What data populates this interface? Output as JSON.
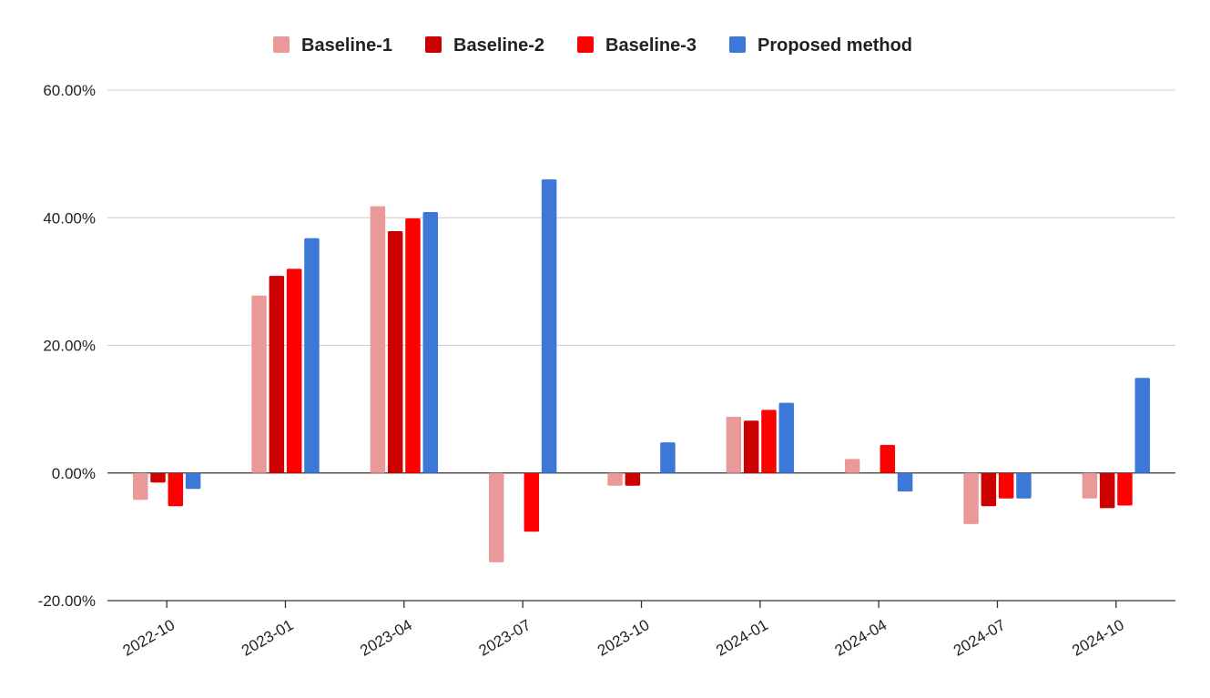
{
  "chart_data": {
    "type": "bar",
    "title": "",
    "xlabel": "",
    "ylabel": "",
    "categories": [
      "2022-10",
      "2023-01",
      "2023-04",
      "2023-07",
      "2023-10",
      "2024-01",
      "2024-04",
      "2024-07",
      "2024-10"
    ],
    "series": [
      {
        "name": "Baseline-1",
        "color": "#ea9999",
        "values": [
          -4.2,
          27.8,
          41.8,
          -14.0,
          -2.0,
          8.8,
          2.2,
          -8.0,
          -4.0
        ]
      },
      {
        "name": "Baseline-2",
        "color": "#cc0000",
        "values": [
          -1.5,
          30.9,
          37.9,
          0.0,
          -2.0,
          8.2,
          0.0,
          -5.2,
          -5.5
        ]
      },
      {
        "name": "Baseline-3",
        "color": "#ff0000",
        "values": [
          -5.2,
          32.0,
          39.9,
          -9.2,
          0.0,
          9.9,
          4.4,
          -4.0,
          -5.1
        ]
      },
      {
        "name": "Proposed method",
        "color": "#3c78d8",
        "values": [
          -2.5,
          36.8,
          40.9,
          46.0,
          4.8,
          11.0,
          -2.9,
          -4.0,
          14.9
        ]
      }
    ],
    "ylim": [
      -20,
      60
    ],
    "yticks": [
      -20,
      0,
      20,
      40,
      60
    ],
    "ytick_labels": [
      "-20.00%",
      "0.00%",
      "20.00%",
      "40.00%",
      "60.00%"
    ],
    "grid": true,
    "legend_position": "top-center"
  }
}
